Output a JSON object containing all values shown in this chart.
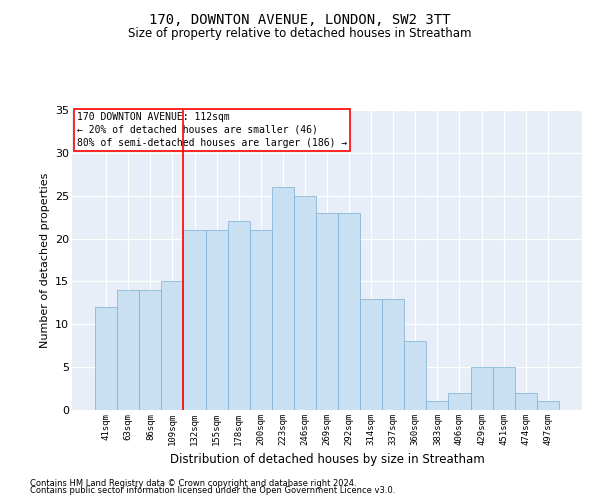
{
  "title1": "170, DOWNTON AVENUE, LONDON, SW2 3TT",
  "title2": "Size of property relative to detached houses in Streatham",
  "xlabel": "Distribution of detached houses by size in Streatham",
  "ylabel": "Number of detached properties",
  "categories": [
    "41sqm",
    "63sqm",
    "86sqm",
    "109sqm",
    "132sqm",
    "155sqm",
    "178sqm",
    "200sqm",
    "223sqm",
    "246sqm",
    "269sqm",
    "292sqm",
    "314sqm",
    "337sqm",
    "360sqm",
    "383sqm",
    "406sqm",
    "429sqm",
    "451sqm",
    "474sqm",
    "497sqm"
  ],
  "values": [
    12,
    14,
    14,
    15,
    21,
    21,
    22,
    21,
    26,
    25,
    23,
    23,
    13,
    13,
    8,
    1,
    2,
    5,
    5,
    2,
    1
  ],
  "bar_color": "#c9dff2",
  "bar_edge_color": "#7bafd4",
  "background_color": "#e8eef7",
  "grid_color": "#ffffff",
  "annotation_box_text": [
    "170 DOWNTON AVENUE: 112sqm",
    "← 20% of detached houses are smaller (46)",
    "80% of semi-detached houses are larger (186) →"
  ],
  "ylim": [
    0,
    35
  ],
  "yticks": [
    0,
    5,
    10,
    15,
    20,
    25,
    30,
    35
  ],
  "red_line_index": 3.5,
  "footer1": "Contains HM Land Registry data © Crown copyright and database right 2024.",
  "footer2": "Contains public sector information licensed under the Open Government Licence v3.0."
}
